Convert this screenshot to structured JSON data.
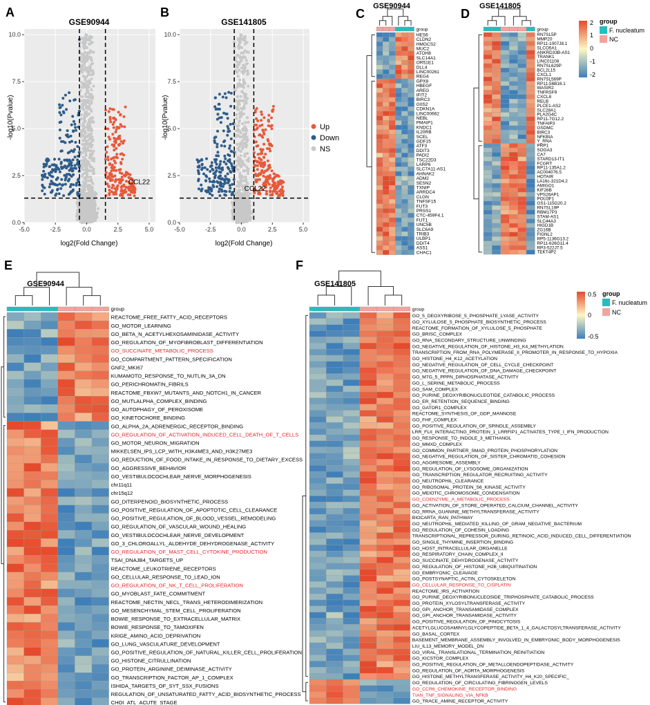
{
  "colors": {
    "up": "#e8593a",
    "down": "#2e5c8a",
    "ns": "#c8c8c8",
    "fuso": "#26bcc0",
    "nc": "#f3a39d",
    "red_text": "#e8242b",
    "heat_low": "#3f7fb9",
    "heat_mid": "#fdf7c4",
    "heat_high": "#e64a2c"
  },
  "panels": {
    "A": "A",
    "B": "B",
    "C": "C",
    "D": "D",
    "E": "E",
    "F": "F"
  },
  "legend_volcano": {
    "up": "Up",
    "down": "Down",
    "ns": "NS"
  },
  "legend_heat": {
    "group_title": "group",
    "fuso": "F. nucleatum",
    "nc": "NC",
    "scale_CD": [
      "2",
      "1",
      "0",
      "-1",
      "-2"
    ],
    "scale_EF": [
      "0.5",
      "0",
      "-0.5"
    ]
  },
  "chart_data": [
    {
      "type": "scatter",
      "panel": "A",
      "title": "GSE90944",
      "xlabel": "log2(Fold Change)",
      "ylabel": "-log10(Pvalue)",
      "xlim": [
        -5.0,
        5.5
      ],
      "ylim": [
        0,
        10.3
      ],
      "xticks": [
        "-5.0",
        "-2.5",
        "0.0",
        "2.5",
        "5.0"
      ],
      "yticks": [
        "0.0",
        "2.5",
        "5.0",
        "7.5",
        "10.0"
      ],
      "thresholds": {
        "fc": [
          -0.58,
          1.5
        ],
        "p": 1.3
      },
      "annotation": {
        "label": "CCL22",
        "x": 4.2,
        "y": 2.05
      }
    },
    {
      "type": "scatter",
      "panel": "B",
      "title": "GSE141805",
      "xlabel": "log2(Fold Change)",
      "ylabel": "-log10(Pvalue)",
      "xlim": [
        -5.0,
        5.5
      ],
      "ylim": [
        0,
        10.3
      ],
      "xticks": [
        "-5.0",
        "-2.5",
        "0.0",
        "2.5",
        "5.0"
      ],
      "yticks": [
        "0.0",
        "2.5",
        "5.0",
        "7.5",
        "10.0"
      ],
      "thresholds": {
        "fc": [
          -0.58,
          1.0
        ],
        "p": 1.3
      },
      "annotation": {
        "label": "CCL22",
        "x": 1.1,
        "y": 1.7
      }
    },
    {
      "type": "heatmap",
      "panel": "C",
      "title": "GSE90944",
      "columns": 6,
      "rows": [
        "HES6",
        "CLDN2",
        "HMGCS2",
        "MUC2",
        "ATOH8",
        "SLC14A1",
        "OR51E1",
        "DLL4",
        "LINC00261",
        "REG4",
        "GPX8",
        "HBEGF",
        "AREG",
        "IFIT2",
        "BIRC3",
        "G0S2",
        "CDKN1A",
        "LINC00662",
        "NEBL",
        "PMAIP1",
        "KNDC1",
        "IL20RB",
        "SCEL",
        "GDF15",
        "ATF3",
        "DDIT3",
        "PADI2",
        "TSC22D3",
        "LARP6",
        "SLC7A11-AS1",
        "AHNAK2",
        "ADM2",
        "SESN2",
        "TXNIP",
        "ARRDC4",
        "CLGN",
        "TNFSF15",
        "FUT3",
        "PRSS1",
        "CTC-459F4.1",
        "FUT1",
        "UNC5B",
        "SLC6A9",
        "TRIB3",
        "ULBP1",
        "DDIT4",
        "ASS1",
        "CHAC1"
      ]
    },
    {
      "type": "heatmap",
      "panel": "D",
      "title": "GSE141805",
      "columns": 6,
      "rows": [
        "RN7SL5P",
        "MMP20",
        "RP11-1007J8.1",
        "SLCO5A1",
        "ANKRD33B-AS1",
        "TRANK1",
        "LINC01108",
        "RN7SL629P",
        "BCL2L15",
        "CXCL1",
        "RN7SL569P",
        "RP11-56B16.1",
        "WASIR2",
        "TNFRSF9",
        "CXCL8",
        "RELB",
        "PLCE1-AS2",
        "SLC28A1",
        "PLA2G4C",
        "RP11-7G12.2",
        "TNFAIP3",
        "GSDMC",
        "BIRC3",
        "NFKBIA",
        "Y_RNA",
        "PRP1",
        "SOGA3",
        "CA7",
        "STARD13-IT1",
        "FCGRT",
        "RP11-135A1.2",
        "AC004076.5",
        "HOTAIR",
        "LA16c-321D4.2",
        "AMIGO1",
        "KIF26B",
        "VPS26AP1",
        "POU3F1",
        "GS1-115G20.2",
        "RN7SL19P",
        "RBM17P3",
        "STAM-AS1",
        "SLC44A3",
        "HIGD1B",
        "ZG16B",
        "FIGNL2",
        "RP5-1136G13.2",
        "RP11-626G11.4",
        "RP3-522J7.5",
        "TEKT4P2"
      ]
    },
    {
      "type": "heatmap",
      "panel": "E",
      "title": "GSE90944",
      "columns": 6,
      "rows": [
        "REACTOME_FREE_FATTY_ACID_RECEPTORS",
        "GO_MOTOR_LEARNING",
        "GO_BETA_N_ACETYLHEXOSAMINIDASE_ACTIVITY",
        "GO_REGULATION_OF_MYOFIBROBLAST_DIFFERENTIATION",
        "GO_SUCCINATE_METABOLIC_PROCESS",
        "GO_COMPARTMENT_PATTERN_SPECIFICATION",
        "GNF2_MKI67",
        "KUMAMOTO_RESPONSE_TO_NUTLIN_3A_DN",
        "GO_PERICHROMATIN_FIBRILS",
        "REACTOME_FBXW7_MUTANTS_AND_NOTCH1_IN_CANCER",
        "GO_MUTLALPHA_COMPLEX_BINDING",
        "GO_AUTOPHAGY_OF_PEROXISOME",
        "GO_KINETOCHORE_BINDING",
        "GO_ALPHA_2A_ADRENERGIC_RECEPTOR_BINDING",
        "GO_REGULATION_OF_ACTIVATION_INDUCED_CELL_DEATH_OF_T_CELLS",
        "GO_MOTOR_NEURON_MIGRATION",
        "MIKKELSEN_IPS_LCP_WITH_H3K4ME3_AND_H3K27ME3",
        "GO_REDUCTION_OF_FOOD_INTAKE_IN_RESPONSE_TO_DIETARY_EXCESS",
        "GO_AGGRESSIVE_BEHAVIOR",
        "GO_VESTIBULOCOCHLEAR_NERVE_MORPHOGENESIS",
        "chr11q11",
        "chr15q12",
        "GO_DITERPENOID_BIOSYNTHETIC_PROCESS",
        "GO_POSITIVE_REGULATION_OF_APOPTOTIC_CELL_CLEARANCE",
        "GO_POSITIVE_REGULATION_OF_BLOOD_VESSEL_REMODELING",
        "GO_REGULATION_OF_VASCULAR_WOUND_HEALING",
        "GO_VESTIBULOCOCHLEAR_NERVE_DEVELOPMENT",
        "GO_3_CHLOROALLYL_ALDEHYDE_DEHYDROGENASE_ACTIVITY",
        "GO_REGULATION_OF_MAST_CELL_CYTOKINE_PRODUCTION",
        "TSAI_DNAJB4_TARGETS_UP",
        "REACTOME_LEUKOTRIENE_RECEPTORS",
        "GO_CELLULAR_RESPONSE_TO_LEAD_ION",
        "GO_REGULATION_OF_NK_T_CELL_PROLIFERATION",
        "GO_MYOBLAST_FATE_COMMITMENT",
        "REACTOME_NECTIN_NECL_TRANS_HETERODIMERIZATION",
        "GO_MESENCHYMAL_STEM_CELL_PROLIFERATION",
        "BOWIE_RESPONSE_TO_EXTRACELLULAR_MATRIX",
        "BOWIE_RESPONSE_TO_TAMOXIFEN",
        "KRIGE_AMINO_ACID_DEPRIVATION",
        "GO_LUNG_VASCULATURE_DEVELOPMENT",
        "GO_POSITIVE_REGULATION_OF_NATURAL_KILLER_CELL_PROLIFERATION",
        "GO_HISTONE_CITRULLINATION",
        "GO_PROTEIN_ARGININE_DEIMINASE_ACTIVITY",
        "GO_TRANSCRIPTION_FACTOR_AP_1_COMPLEX",
        "ISHIDA_TARGETS_OF_SYT_SSX_FUSIONS",
        "REGULATION_OF_UNSATURATED_FATTY_ACID_BIOSYNTHETIC_PROCESS",
        "CHOI_ATL_ACUTE_STAGE"
      ],
      "highlighted": [
        4,
        14,
        28,
        32
      ]
    },
    {
      "type": "heatmap",
      "panel": "F",
      "title": "GSE141805",
      "columns": 6,
      "rows": [
        "GO_5_DEOXYRIBOSE_5_PHOSPHATE_LYASE_ACTIVITY",
        "GO_XYLULOSE_5_PHOSPHATE_BIOSYNTHETIC_PROCESS",
        "REACTOME_FORMATION_OF_XYLULOSE_5_PHOSPHATE",
        "GO_BRISC_COMPLEX",
        "GO_RNA_SECONDARY_STRUCTURE_UNWINDING",
        "GO_NEGATIVE_REGULATION_OF_HISTONE_H3_K4_METHYLATION",
        "TRANSCRIPTION_FROM_RNA_POLYMERASE_II_PROMOTER_IN_RESPONSE_TO_HYPOXIA",
        "GO_HISTONE_H4_K12_ACETYLATION",
        "GO_NEGATIVE_REGULATION_OF_CELL_CYCLE_CHECKPOINT",
        "GO_NEGATIVE_REGULATION_OF_DNA_DAMAGE_CHECKPOINT",
        "GO_M7G_5_PPPN_DIPHOSPHATASE_ACTIVITY",
        "GO_L_SERINE_METABOLIC_PROCESS",
        "GO_SAM_COMPLEX",
        "GO_PURINE_DEOXYRIBONUCLEOTIDE_CATABOLIC_PROCESS",
        "GO_ER_RETENTION_SEQUENCE_BINDING",
        "GO_GATOR1_COMPLEX",
        "REACTOME_SYNTHESIS_OF_GDP_MANNOSE",
        "GO_FHF_COMPLEX",
        "GO_POSITIVE_REGULATION_OF_SPINDLE_ASSEMBLY",
        "LRR_FLII_INTERACTING_PROTEIN_1_LRRFIP1_ACTIVATES_TYPE_I_IFN_PRODUCTION",
        "GO_RESPONSE_TO_INDOLE_3_METHANOL",
        "GO_MMXD_COMPLEX",
        "GO_COMMON_PARTNER_SMAD_PROTEIN_PHOSPHORYLATION",
        "GO_NEGATIVE_REGULATION_OF_SISTER_CHROMATID_COHESION",
        "GO_AGGRESOME_ASSEMBLY",
        "GO_REGULATION_OF_LYSOSOME_ORGANIZATION",
        "GO_TRANSCRIPTION_REGULATOR_RECRUITING_ACTIVITY",
        "GO_NEUTROPHIL_CLEARANCE",
        "GO_RIBOSOMAL_PROTEIN_S6_KINASE_ACTIVITY",
        "GO_MEIOTIC_CHROMOSOME_CONDENSATION",
        "GO_COENZYME_A_METABOLIC_PROCESS",
        "GO_ACTIVATION_OF_STORE_OPERATED_CALCIUM_CHANNEL_ACTIVITY",
        "GO_RRNA_GUANINE_METHYLTRANSFERASE_ACTIVITY",
        "BIOCARTA_RAN_PATHWAY",
        "GO_NEUTROPHIL_MEDIATED_KILLING_OF_GRAM_NEGATIVE_BACTERIUM",
        "GO_REGULATION_OF_COHESIN_LOADING",
        "TRANSCRIPTIONAL_REPRESSOR_DURING_RETINOIC_ACID_INDUCED_CELL_DIFFERENTIATION",
        "GO_SINGLE_THYMINE_INSERTION_BINDING",
        "GO_HOST_INTRACELLULAR_ORGANELLE",
        "GO_RESPIRATORY_CHAIN_COMPLEX_II",
        "GO_SUCCINATE_DEHYDROGENASE_ACTIVITY",
        "GO_REGULATION_OF_HISTONE_H2B_UBIQUITINATION",
        "GO_EMBRYONIC_CLEAVAGE",
        "GO_POSTSYNAPTIC_ACTIN_CYTOSKELETON",
        "GO_CELLULAR_RESPONSE_TO_CISPLATIN",
        "REACTOME_IRS_ACTIVATION",
        "GO_PURINE_DEOXYRIBONUCLEOSIDE_TRIPHOSPHATE_CATABOLIC_PROCESS",
        "GO_PROTEIN_XYLOSYLTRANSFERASE_ACTIVITY",
        "GO_GPI_ANCHOR_TRANSAMIDASE_COMPLEX",
        "GO_GPI_ANCHOR_TRANSAMIDASE_ACTIVITY",
        "GO_POSITIVE_REGULATION_OF_PINOCYTOSIS",
        "ACETYLGLUCOSAMINYLGLYCOPEPTIDE_BETA_1_4_GALACTOSYLTRANSFERASE_ACTIVITY",
        "GO_BASAL_CORTEX",
        "BASEMENT_MEMBRANE_ASSEMBLY_INVOLVED_IN_EMBRYONIC_BODY_MORPHOGENESIS",
        "LIU_IL13_MEMORY_MODEL_DN",
        "GO_VIRAL_TRANSLATIONAL_TERMINATION_REINITIATION",
        "GO_KICSTOR_COMPLEX",
        "GO_POSITIVE_REGULATION_OF_METALLOENDOPEPTIDASE_ACTIVITY",
        "GO_REGULATION_OF_AORTA_MORPHOGENESIS",
        "GO_HISTONE_METHYLTRANSFERASE_ACTIVITY_H4_K20_SPECIFIC_",
        "GO_REGULATION_OF_CIRCULATING_FIBRINOGEN_LEVELS",
        "GO_CCR6_CHEMOKINE_RECEPTOR_BINDING",
        "TIAN_TNF_SIGNALING_VIA_NFKB",
        "GO_TRACE_AMINE_RECEPTOR_ACTIVITY"
      ],
      "highlighted": [
        30,
        44,
        61,
        62
      ]
    }
  ]
}
